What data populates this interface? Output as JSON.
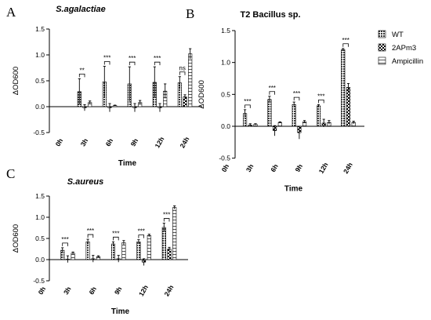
{
  "legend": [
    {
      "name": "WT",
      "pattern": "grid"
    },
    {
      "name": "2APm3",
      "pattern": "check"
    },
    {
      "name": "Ampicillin",
      "pattern": "hatch"
    }
  ],
  "chart_data": [
    {
      "type": "bar",
      "panel": "A",
      "title": "S.agalactiae",
      "title_italic": true,
      "xlabel": "Time",
      "ylabel": "ΔOD600",
      "ylim": [
        -0.5,
        1.5
      ],
      "yticks": [
        "-0.5",
        "0.0",
        "0.5",
        "1.0",
        "1.5"
      ],
      "categories": [
        "0h",
        "3h",
        "6h",
        "9h",
        "12h",
        "24h"
      ],
      "series": [
        {
          "name": "WT",
          "values": [
            0,
            0.29,
            0.48,
            0.44,
            0.47,
            0.46
          ],
          "errors": [
            0,
            0.25,
            0.3,
            0.33,
            0.3,
            0.12
          ]
        },
        {
          "name": "2APm3",
          "values": [
            0,
            -0.02,
            -0.02,
            -0.02,
            -0.02,
            0.19
          ],
          "errors": [
            0,
            0.06,
            0.08,
            0.08,
            0.08,
            0.04
          ]
        },
        {
          "name": "Ampicillin",
          "values": [
            0,
            0.08,
            0.02,
            0.08,
            0.3,
            1.02
          ],
          "errors": [
            0,
            0.03,
            0.01,
            0.04,
            0.14,
            0.1
          ]
        }
      ],
      "significance": [
        "",
        "**",
        "***",
        "***",
        "***",
        "ns"
      ]
    },
    {
      "type": "bar",
      "panel": "B",
      "title": "T2 Bacillus sp.",
      "title_italic": false,
      "xlabel": "Time",
      "ylabel": "ΔOD600",
      "ylim": [
        -0.5,
        1.5
      ],
      "yticks": [
        "-0.5",
        "0.0",
        "0.5",
        "1.0",
        "1.5"
      ],
      "categories": [
        "0h",
        "3h",
        "6h",
        "9h",
        "12h",
        "24h"
      ],
      "series": [
        {
          "name": "WT",
          "values": [
            0,
            0.2,
            0.42,
            0.34,
            0.32,
            1.2
          ],
          "errors": [
            0,
            0.06,
            0.05,
            0.04,
            0.02,
            0.02
          ]
        },
        {
          "name": "2APm3",
          "values": [
            0,
            0.02,
            -0.07,
            -0.1,
            0.05,
            0.61
          ],
          "errors": [
            0,
            0.02,
            0.08,
            0.1,
            0.06,
            0.06
          ]
        },
        {
          "name": "Ampicillin",
          "values": [
            0,
            0.03,
            0.06,
            0.07,
            0.06,
            0.06
          ],
          "errors": [
            0,
            0.01,
            0.01,
            0.02,
            0.03,
            0.02
          ]
        }
      ],
      "significance": [
        "",
        "***",
        "***",
        "***",
        "***",
        "***"
      ]
    },
    {
      "type": "bar",
      "panel": "C",
      "title": "S.aureus",
      "title_italic": true,
      "xlabel": "Time",
      "ylabel": "ΔOD600",
      "ylim": [
        -0.5,
        1.5
      ],
      "yticks": [
        "-0.5",
        "0.0",
        "0.5",
        "1.0",
        "1.5"
      ],
      "categories": [
        "0h",
        "3h",
        "6h",
        "9h",
        "12h",
        "24h"
      ],
      "series": [
        {
          "name": "WT",
          "values": [
            0,
            0.22,
            0.42,
            0.37,
            0.42,
            0.76
          ],
          "errors": [
            0,
            0.06,
            0.06,
            0.05,
            0.05,
            0.1
          ]
        },
        {
          "name": "2APm3",
          "values": [
            0,
            0.01,
            0.02,
            0.02,
            -0.06,
            0.25
          ],
          "errors": [
            0,
            0.08,
            0.08,
            0.08,
            0.08,
            0.04
          ]
        },
        {
          "name": "Ampicillin",
          "values": [
            0,
            0.15,
            0.07,
            0.4,
            0.57,
            1.23
          ],
          "errors": [
            0,
            0.03,
            0.02,
            0.05,
            0.03,
            0.04
          ]
        }
      ],
      "significance": [
        "",
        "***",
        "***",
        "***",
        "***",
        "***"
      ]
    }
  ]
}
